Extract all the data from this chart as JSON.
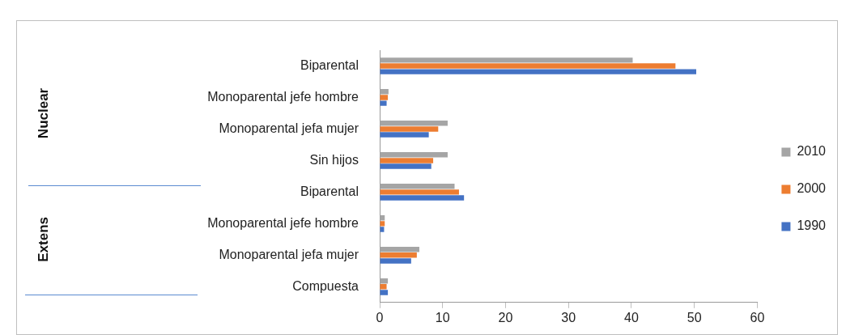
{
  "chart_data": {
    "type": "bar",
    "orientation": "horizontal",
    "categories": [
      "Biparental",
      "Monoparental jefe hombre",
      "Monoparental jefa mujer",
      "Sin hijos",
      "Biparental",
      "Monoparental jefe hombre",
      "Monoparental jefa mujer",
      "Compuesta"
    ],
    "series": [
      {
        "name": "2010",
        "color": "#a5a5a5",
        "values": [
          40.2,
          1.4,
          10.8,
          10.8,
          11.9,
          0.8,
          6.3,
          1.3
        ]
      },
      {
        "name": "2000",
        "color": "#ed7d31",
        "values": [
          47.0,
          1.3,
          9.3,
          8.5,
          12.6,
          0.8,
          5.9,
          1.1
        ]
      },
      {
        "name": "1990",
        "color": "#4472c4",
        "values": [
          50.3,
          1.1,
          7.8,
          8.2,
          13.4,
          0.7,
          5.0,
          1.3
        ]
      }
    ],
    "xlim": [
      0,
      60
    ],
    "xticks": [
      0,
      10,
      20,
      30,
      40,
      50,
      60
    ],
    "annotations": [
      "Nuclear",
      "Extens"
    ],
    "legend": "right",
    "grid": false
  }
}
